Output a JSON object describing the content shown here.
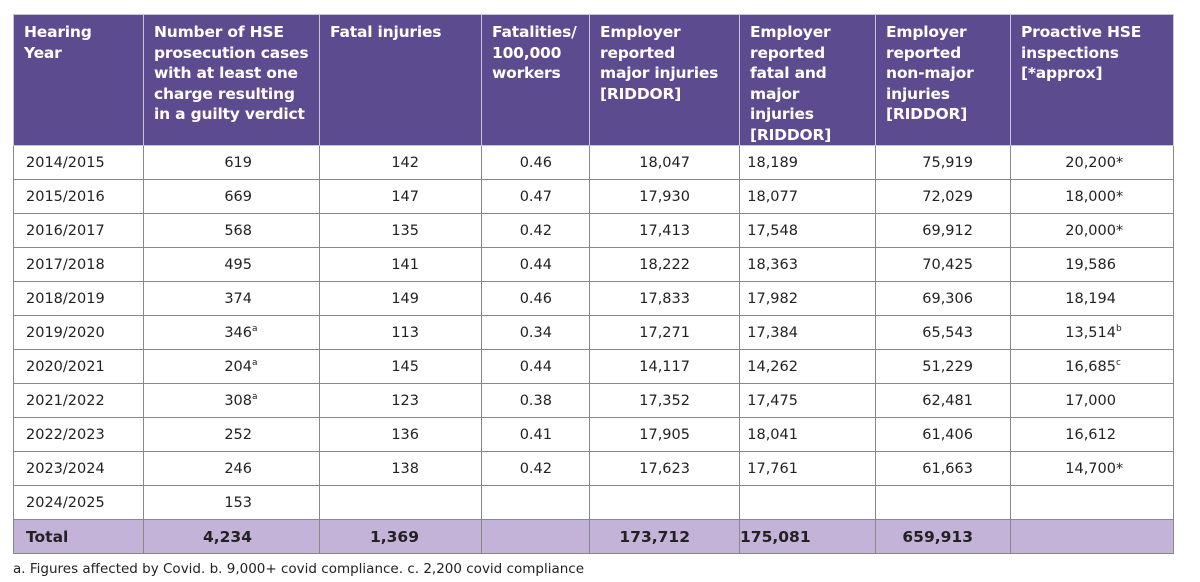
{
  "columns": [
    "Hearing Year",
    "Number of HSE prosecution cases with at least one charge resulting in a guilty verdict",
    "Fatal injuries",
    "Fatalities/ 100,000 workers",
    "Employer reported major injuries [RIDDOR]",
    "Employer reported fatal and major injuries [RIDDOR]",
    "Employer reported non-major injuries [RIDDOR]",
    "Proactive HSE inspections [*approx]"
  ],
  "rows": [
    {
      "year": "2014/2015",
      "cases": "619",
      "cases_note": "",
      "fatal": "142",
      "rate": "0.46",
      "major": "18,047",
      "fatal_major": "18,189",
      "non_major": "75,919",
      "inspections": "20,200",
      "insp_note": "*",
      "insp_sup": ""
    },
    {
      "year": "2015/2016",
      "cases": "669",
      "cases_note": "",
      "fatal": "147",
      "rate": "0.47",
      "major": "17,930",
      "fatal_major": "18,077",
      "non_major": "72,029",
      "inspections": "18,000",
      "insp_note": "*",
      "insp_sup": ""
    },
    {
      "year": "2016/2017",
      "cases": "568",
      "cases_note": "",
      "fatal": "135",
      "rate": "0.42",
      "major": "17,413",
      "fatal_major": "17,548",
      "non_major": "69,912",
      "inspections": "20,000",
      "insp_note": "*",
      "insp_sup": ""
    },
    {
      "year": "2017/2018",
      "cases": "495",
      "cases_note": "",
      "fatal": "141",
      "rate": "0.44",
      "major": "18,222",
      "fatal_major": "18,363",
      "non_major": "70,425",
      "inspections": "19,586",
      "insp_note": "",
      "insp_sup": ""
    },
    {
      "year": "2018/2019",
      "cases": "374",
      "cases_note": "",
      "fatal": "149",
      "rate": "0.46",
      "major": "17,833",
      "fatal_major": "17,982",
      "non_major": "69,306",
      "inspections": "18,194",
      "insp_note": "",
      "insp_sup": ""
    },
    {
      "year": "2019/2020",
      "cases": "346",
      "cases_note": "a",
      "fatal": "113",
      "rate": "0.34",
      "major": "17,271",
      "fatal_major": "17,384",
      "non_major": "65,543",
      "inspections": "13,514",
      "insp_note": "",
      "insp_sup": "b"
    },
    {
      "year": "2020/2021",
      "cases": "204",
      "cases_note": "a",
      "fatal": "145",
      "rate": "0.44",
      "major": "14,117",
      "fatal_major": "14,262",
      "non_major": "51,229",
      "inspections": "16,685",
      "insp_note": "",
      "insp_sup": "c"
    },
    {
      "year": "2021/2022",
      "cases": "308",
      "cases_note": "a",
      "fatal": "123",
      "rate": "0.38",
      "major": "17,352",
      "fatal_major": "17,475",
      "non_major": "62,481",
      "inspections": "17,000",
      "insp_note": "",
      "insp_sup": ""
    },
    {
      "year": "2022/2023",
      "cases": "252",
      "cases_note": "",
      "fatal": "136",
      "rate": "0.41",
      "major": "17,905",
      "fatal_major": "18,041",
      "non_major": "61,406",
      "inspections": "16,612",
      "insp_note": "",
      "insp_sup": ""
    },
    {
      "year": "2023/2024",
      "cases": "246",
      "cases_note": "",
      "fatal": "138",
      "rate": "0.42",
      "major": "17,623",
      "fatal_major": "17,761",
      "non_major": "61,663",
      "inspections": "14,700",
      "insp_note": "*",
      "insp_sup": ""
    },
    {
      "year": "2024/2025",
      "cases": "153",
      "cases_note": "",
      "fatal": "",
      "rate": "",
      "major": "",
      "fatal_major": "",
      "non_major": "",
      "inspections": "",
      "insp_note": "",
      "insp_sup": ""
    }
  ],
  "total": {
    "label": "Total",
    "cases": "4,234",
    "fatal": "1,369",
    "rate": "",
    "major": "173,712",
    "fatal_major": "175,081",
    "non_major": "659,913",
    "inspections": ""
  },
  "footnote": "a. Figures affected by Covid. b. 9,000+ covid compliance. c. 2,200 covid compliance",
  "colors": {
    "header": "#5d4b90",
    "total_row": "#c4b3d8"
  }
}
